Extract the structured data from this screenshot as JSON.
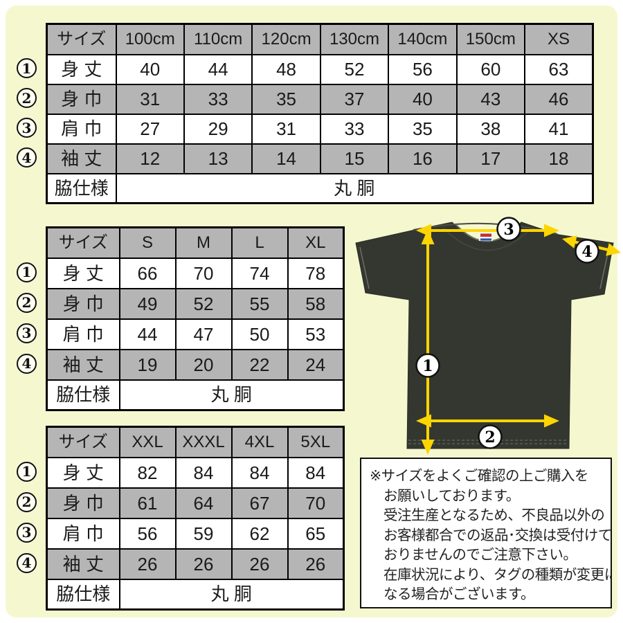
{
  "colors": {
    "background": "#f5f8cf",
    "table_shade": "#b5b5b5",
    "shirt": "#343730",
    "arrow_yellow": "#fdd503",
    "border_black": "#000000"
  },
  "size_tables": [
    {
      "name": "kids-to-xs",
      "columns": [
        "サイズ",
        "100cm",
        "110cm",
        "120cm",
        "130cm",
        "140cm",
        "150cm",
        "XS"
      ],
      "rows": [
        {
          "point": "1",
          "label": "身 丈",
          "values": [
            40,
            44,
            48,
            52,
            56,
            60,
            63
          ]
        },
        {
          "point": "2",
          "label": "身 巾",
          "values": [
            31,
            33,
            35,
            37,
            40,
            43,
            46
          ]
        },
        {
          "point": "3",
          "label": "肩 巾",
          "values": [
            27,
            29,
            31,
            33,
            35,
            38,
            41
          ]
        },
        {
          "point": "4",
          "label": "袖 丈",
          "values": [
            12,
            13,
            14,
            15,
            16,
            17,
            18
          ]
        }
      ],
      "spec_label": "脇仕様",
      "spec_value": "丸 胴"
    },
    {
      "name": "s-to-xl",
      "columns": [
        "サイズ",
        "S",
        "M",
        "L",
        "XL"
      ],
      "rows": [
        {
          "point": "1",
          "label": "身 丈",
          "values": [
            66,
            70,
            74,
            78
          ]
        },
        {
          "point": "2",
          "label": "身 巾",
          "values": [
            49,
            52,
            55,
            58
          ]
        },
        {
          "point": "3",
          "label": "肩 巾",
          "values": [
            44,
            47,
            50,
            53
          ]
        },
        {
          "point": "4",
          "label": "袖 丈",
          "values": [
            19,
            20,
            22,
            24
          ]
        }
      ],
      "spec_label": "脇仕様",
      "spec_value": "丸 胴"
    },
    {
      "name": "xxl-to-5xl",
      "columns": [
        "サイズ",
        "XXL",
        "XXXL",
        "4XL",
        "5XL"
      ],
      "rows": [
        {
          "point": "1",
          "label": "身 丈",
          "values": [
            82,
            84,
            84,
            84
          ]
        },
        {
          "point": "2",
          "label": "身 巾",
          "values": [
            61,
            64,
            67,
            70
          ]
        },
        {
          "point": "3",
          "label": "肩 巾",
          "values": [
            56,
            59,
            62,
            65
          ]
        },
        {
          "point": "4",
          "label": "袖 丈",
          "values": [
            26,
            26,
            26,
            26
          ]
        }
      ],
      "spec_label": "脇仕様",
      "spec_value": "丸 胴"
    }
  ],
  "shirt_diagram": {
    "point_labels": {
      "p1": "1",
      "p2": "2",
      "p3": "3",
      "p4": "4"
    }
  },
  "note": {
    "lines": [
      "※サイズをよくご確認の上ご購入を",
      "お願いしております。",
      "受注生産となるため、不良品以外の",
      "お客様都合での返品･交換は受付けて",
      "おりませんのでご注意下さい。",
      "在庫状況により、タグの種類が変更に",
      "なる場合がございます。"
    ]
  }
}
